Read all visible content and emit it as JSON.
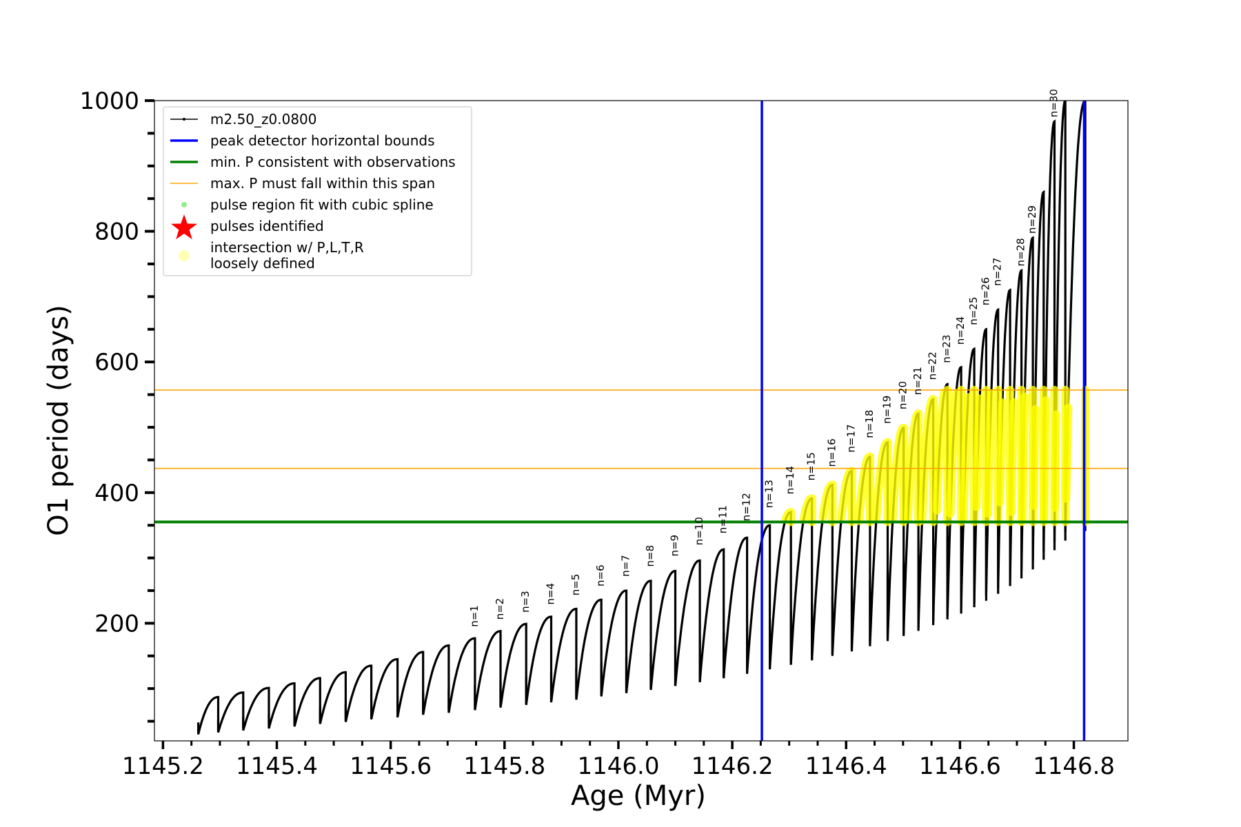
{
  "chart_data": {
    "type": "line",
    "title": "",
    "xlabel": "Age (Myr)",
    "ylabel": "O1 period (days)",
    "xlim": [
      1145.185,
      1146.895
    ],
    "ylim": [
      20,
      1000
    ],
    "x_ticks": [
      1145.2,
      1145.4,
      1145.6,
      1145.8,
      1146.0,
      1146.2,
      1146.4,
      1146.6,
      1146.8
    ],
    "x_tick_labels": [
      "1145.2",
      "1145.4",
      "1145.6",
      "1145.8",
      "1146.0",
      "1146.2",
      "1146.4",
      "1146.6",
      "1146.8"
    ],
    "y_ticks": [
      200,
      400,
      600,
      800,
      1000
    ],
    "y_tick_labels": [
      "200",
      "400",
      "600",
      "800",
      "1000"
    ],
    "grid": false,
    "legend_position": "top-left",
    "legend": [
      {
        "label": "m2.50_z0.0800",
        "kind": "line-marker",
        "color": "#000000"
      },
      {
        "label": "peak detector horizontal bounds",
        "kind": "line",
        "color": "#0000ff"
      },
      {
        "label": "min. P consistent with observations",
        "kind": "line",
        "color": "#008000"
      },
      {
        "label": "max. P must fall within this span",
        "kind": "thin-line",
        "color": "#ffa500"
      },
      {
        "label": "pulse region fit with cubic spline",
        "kind": "dot",
        "color": "#90ee90"
      },
      {
        "label": "pulses identified",
        "kind": "star",
        "color": "#ff0000"
      },
      {
        "label": "intersection w/ P,L,T,R\nloosely defined",
        "kind": "big-dot",
        "color": "#ffffb3"
      }
    ],
    "vertical_lines": [
      {
        "x": 1146.252,
        "color": "#0000ff"
      },
      {
        "x": 1146.818,
        "color": "#0000ff"
      }
    ],
    "horizontal_lines": [
      {
        "y": 355,
        "color": "#008000"
      },
      {
        "y": 437,
        "color": "#ffa500"
      },
      {
        "y": 557,
        "color": "#ffa500"
      }
    ],
    "series": [
      {
        "name": "m2.50_z0.0800",
        "color": "#000000",
        "cycles": [
          {
            "x0": 1145.262,
            "x1": 1145.297,
            "y_min": 30,
            "y_max": 87
          },
          {
            "x0": 1145.297,
            "x1": 1145.341,
            "y_min": 33,
            "y_max": 94
          },
          {
            "x0": 1145.341,
            "x1": 1145.386,
            "y_min": 36,
            "y_max": 101
          },
          {
            "x0": 1145.386,
            "x1": 1145.431,
            "y_min": 39,
            "y_max": 108
          },
          {
            "x0": 1145.431,
            "x1": 1145.476,
            "y_min": 42,
            "y_max": 116
          },
          {
            "x0": 1145.476,
            "x1": 1145.521,
            "y_min": 46,
            "y_max": 125
          },
          {
            "x0": 1145.521,
            "x1": 1145.566,
            "y_min": 49,
            "y_max": 135
          },
          {
            "x0": 1145.566,
            "x1": 1145.612,
            "y_min": 53,
            "y_max": 145
          },
          {
            "x0": 1145.612,
            "x1": 1145.657,
            "y_min": 56,
            "y_max": 156
          },
          {
            "x0": 1145.657,
            "x1": 1145.702,
            "y_min": 60,
            "y_max": 166
          },
          {
            "x0": 1145.702,
            "x1": 1145.748,
            "y_min": 63,
            "y_max": 177
          },
          {
            "x0": 1145.748,
            "x1": 1145.793,
            "y_min": 67,
            "y_max": 188
          },
          {
            "x0": 1145.793,
            "x1": 1145.838,
            "y_min": 71,
            "y_max": 199
          },
          {
            "x0": 1145.838,
            "x1": 1145.882,
            "y_min": 75,
            "y_max": 210
          },
          {
            "x0": 1145.882,
            "x1": 1145.926,
            "y_min": 79,
            "y_max": 222
          },
          {
            "x0": 1145.926,
            "x1": 1145.97,
            "y_min": 83,
            "y_max": 236
          },
          {
            "x0": 1145.97,
            "x1": 1146.014,
            "y_min": 88,
            "y_max": 250
          },
          {
            "x0": 1146.014,
            "x1": 1146.057,
            "y_min": 93,
            "y_max": 265
          },
          {
            "x0": 1146.057,
            "x1": 1146.1,
            "y_min": 98,
            "y_max": 280
          },
          {
            "x0": 1146.1,
            "x1": 1146.143,
            "y_min": 104,
            "y_max": 296
          },
          {
            "x0": 1146.143,
            "x1": 1146.185,
            "y_min": 110,
            "y_max": 313
          },
          {
            "x0": 1146.185,
            "x1": 1146.226,
            "y_min": 117,
            "y_max": 331
          },
          {
            "x0": 1146.226,
            "x1": 1146.266,
            "y_min": 124,
            "y_max": 350
          },
          {
            "x0": 1146.266,
            "x1": 1146.303,
            "y_min": 131,
            "y_max": 370
          },
          {
            "x0": 1146.303,
            "x1": 1146.34,
            "y_min": 138,
            "y_max": 391
          },
          {
            "x0": 1146.34,
            "x1": 1146.376,
            "y_min": 145,
            "y_max": 412
          },
          {
            "x0": 1146.376,
            "x1": 1146.41,
            "y_min": 152,
            "y_max": 433
          },
          {
            "x0": 1146.41,
            "x1": 1146.442,
            "y_min": 160,
            "y_max": 455
          },
          {
            "x0": 1146.442,
            "x1": 1146.473,
            "y_min": 168,
            "y_max": 477
          },
          {
            "x0": 1146.473,
            "x1": 1146.501,
            "y_min": 176,
            "y_max": 499
          },
          {
            "x0": 1146.501,
            "x1": 1146.527,
            "y_min": 184,
            "y_max": 521
          },
          {
            "x0": 1146.527,
            "x1": 1146.553,
            "y_min": 193,
            "y_max": 543
          },
          {
            "x0": 1146.553,
            "x1": 1146.578,
            "y_min": 202,
            "y_max": 566
          },
          {
            "x0": 1146.578,
            "x1": 1146.602,
            "y_min": 211,
            "y_max": 592
          },
          {
            "x0": 1146.602,
            "x1": 1146.625,
            "y_min": 221,
            "y_max": 620
          },
          {
            "x0": 1146.625,
            "x1": 1146.646,
            "y_min": 231,
            "y_max": 650
          },
          {
            "x0": 1146.646,
            "x1": 1146.667,
            "y_min": 242,
            "y_max": 680
          },
          {
            "x0": 1146.667,
            "x1": 1146.688,
            "y_min": 254,
            "y_max": 710
          },
          {
            "x0": 1146.688,
            "x1": 1146.708,
            "y_min": 266,
            "y_max": 740
          },
          {
            "x0": 1146.708,
            "x1": 1146.728,
            "y_min": 280,
            "y_max": 790
          },
          {
            "x0": 1146.728,
            "x1": 1146.747,
            "y_min": 295,
            "y_max": 860
          },
          {
            "x0": 1146.747,
            "x1": 1146.766,
            "y_min": 310,
            "y_max": 968
          },
          {
            "x0": 1146.766,
            "x1": 1146.785,
            "y_min": 325,
            "y_max": 1000
          },
          {
            "x0": 1146.785,
            "x1": 1146.82,
            "y_min": 340,
            "y_max": 1000
          }
        ]
      }
    ],
    "pulse_labels": [
      {
        "text": "n=1",
        "x": 1145.748,
        "y": 188
      },
      {
        "text": "n=2",
        "x": 1145.793,
        "y": 199
      },
      {
        "text": "n=3",
        "x": 1145.838,
        "y": 210
      },
      {
        "text": "n=4",
        "x": 1145.882,
        "y": 222
      },
      {
        "text": "n=5",
        "x": 1145.926,
        "y": 236
      },
      {
        "text": "n=6",
        "x": 1145.97,
        "y": 250
      },
      {
        "text": "n=7",
        "x": 1146.014,
        "y": 265
      },
      {
        "text": "n=8",
        "x": 1146.057,
        "y": 280
      },
      {
        "text": "n=9",
        "x": 1146.1,
        "y": 296
      },
      {
        "text": "n=10",
        "x": 1146.143,
        "y": 313
      },
      {
        "text": "n=11",
        "x": 1146.185,
        "y": 331
      },
      {
        "text": "n=12",
        "x": 1146.226,
        "y": 350
      },
      {
        "text": "n=13",
        "x": 1146.266,
        "y": 370
      },
      {
        "text": "n=14",
        "x": 1146.303,
        "y": 391
      },
      {
        "text": "n=15",
        "x": 1146.34,
        "y": 412
      },
      {
        "text": "n=16",
        "x": 1146.376,
        "y": 433
      },
      {
        "text": "n=17",
        "x": 1146.41,
        "y": 455
      },
      {
        "text": "n=18",
        "x": 1146.442,
        "y": 477
      },
      {
        "text": "n=19",
        "x": 1146.473,
        "y": 499
      },
      {
        "text": "n=20",
        "x": 1146.501,
        "y": 521
      },
      {
        "text": "n=21",
        "x": 1146.527,
        "y": 543
      },
      {
        "text": "n=22",
        "x": 1146.553,
        "y": 566
      },
      {
        "text": "n=23",
        "x": 1146.578,
        "y": 592
      },
      {
        "text": "n=24",
        "x": 1146.602,
        "y": 620
      },
      {
        "text": "n=25",
        "x": 1146.625,
        "y": 650
      },
      {
        "text": "n=26",
        "x": 1146.646,
        "y": 680
      },
      {
        "text": "n=27",
        "x": 1146.667,
        "y": 710
      },
      {
        "text": "n=28",
        "x": 1146.708,
        "y": 740
      },
      {
        "text": "n=29",
        "x": 1146.728,
        "y": 790
      },
      {
        "text": "n=30",
        "x": 1146.766,
        "y": 968
      }
    ],
    "highlight_range_y": [
      355,
      557
    ],
    "highlight_color": "#ffff00"
  }
}
